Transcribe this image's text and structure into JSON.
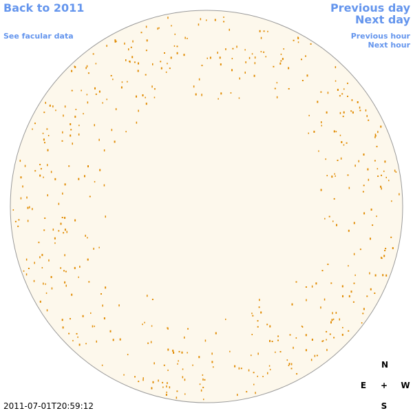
{
  "nav": {
    "back": "Back to 2011",
    "facular": "See facular data",
    "previous_day": "Previous day",
    "next_day": "Next day",
    "previous_hour": "Previous hour",
    "next_hour": "Next hour"
  },
  "compass": {
    "north": "N",
    "east": "E",
    "center": "+",
    "west": "W",
    "south": "S"
  },
  "timestamp": "2011-07-01T20:59:12"
}
